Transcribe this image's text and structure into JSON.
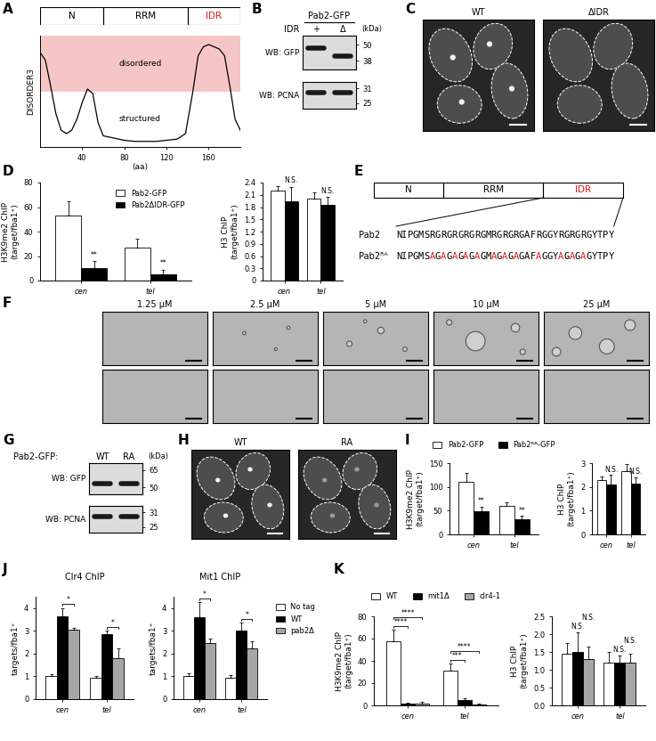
{
  "panel_letters": [
    "A",
    "B",
    "C",
    "D",
    "E",
    "F",
    "G",
    "H",
    "I",
    "J",
    "K"
  ],
  "chart_data": [
    {
      "type": "line",
      "y_label": "DISORDER3",
      "x_label": "(aa)",
      "domains": [
        {
          "name": "N",
          "start": 0,
          "end": 60
        },
        {
          "name": "RRM",
          "start": 60,
          "end": 140
        },
        {
          "name": "IDR",
          "start": 140,
          "end": 190,
          "color": "#e41a1c"
        }
      ],
      "regions": [
        {
          "label": "disordered",
          "range": [
            0.5,
            1.0
          ],
          "color": "#f6c6c6"
        },
        {
          "label": "structured",
          "range": [
            0,
            0.5
          ]
        }
      ],
      "x": [
        0,
        5,
        10,
        15,
        20,
        25,
        30,
        35,
        40,
        45,
        50,
        55,
        60,
        70,
        80,
        90,
        100,
        110,
        120,
        130,
        138,
        145,
        150,
        155,
        160,
        165,
        170,
        175,
        180,
        185,
        190
      ],
      "values": [
        0.85,
        0.78,
        0.55,
        0.3,
        0.15,
        0.12,
        0.15,
        0.25,
        0.4,
        0.52,
        0.48,
        0.22,
        0.1,
        0.08,
        0.06,
        0.05,
        0.05,
        0.05,
        0.06,
        0.07,
        0.12,
        0.5,
        0.82,
        0.9,
        0.92,
        0.9,
        0.88,
        0.82,
        0.55,
        0.25,
        0.15
      ],
      "color": "#000000",
      "xlim": [
        0,
        190
      ],
      "xticks": [
        40,
        80,
        120,
        160
      ],
      "ylim": [
        0,
        1
      ],
      "tick_labels": "x"
    },
    {
      "type": "bar",
      "y_label": "H3K9me2 ChIP\n(target/fba1⁺)",
      "categories": [
        "cen",
        "tel"
      ],
      "series": [
        {
          "name": "Pab2-GFP",
          "color": "#ffffff",
          "values": [
            53,
            27
          ],
          "errors": [
            12,
            7
          ]
        },
        {
          "name": "Pab2ΔIDR-GFP",
          "color": "#000000",
          "values": [
            10,
            5
          ],
          "errors": [
            6,
            4
          ]
        }
      ],
      "ylim": [
        0,
        80
      ],
      "yticks": [
        0,
        20,
        40,
        60,
        80
      ],
      "legend": "upper right",
      "marks": [
        {
          "category": "cen",
          "series": 1,
          "label": "**"
        },
        {
          "category": "tel",
          "series": 1,
          "label": "**"
        }
      ]
    },
    {
      "type": "bar",
      "y_label": "H3 ChIP\n(target/fba1⁺)",
      "categories": [
        "cen",
        "tel"
      ],
      "series": [
        {
          "color": "#ffffff",
          "values": [
            2.2,
            2.0
          ],
          "errors": [
            0.12,
            0.15
          ]
        },
        {
          "color": "#000000",
          "values": [
            1.95,
            1.85
          ],
          "errors": [
            0.35,
            0.2
          ]
        }
      ],
      "ylim": [
        0,
        2.4
      ],
      "yticks": [
        0,
        0.3,
        0.6,
        0.9,
        1.2,
        1.5,
        1.8,
        2.1,
        2.4
      ],
      "marks": [
        {
          "category": "cen",
          "series": 1,
          "label": "N.S."
        },
        {
          "category": "tel",
          "series": 1,
          "label": "N.S."
        }
      ]
    },
    {
      "type": "bar",
      "y_label": "H3K9me2 ChIP\n(target/fba1⁺)",
      "categories": [
        "cen",
        "tel"
      ],
      "series": [
        {
          "name": "Pab2-GFP",
          "color": "#ffffff",
          "values": [
            110,
            60
          ],
          "errors": [
            20,
            8
          ]
        },
        {
          "name": "Pab2ᴿᴬ-GFP",
          "color": "#000000",
          "values": [
            48,
            32
          ],
          "errors": [
            10,
            7
          ]
        }
      ],
      "ylim": [
        0,
        150
      ],
      "yticks": [
        0,
        50,
        100,
        150
      ],
      "legend": "top",
      "marks": [
        {
          "category": "cen",
          "series": 1,
          "label": "**"
        },
        {
          "category": "tel",
          "series": 1,
          "label": "**"
        }
      ]
    },
    {
      "type": "bar",
      "y_label": "H3 ChIP\n(target/fba1⁺)",
      "categories": [
        "cen",
        "tel"
      ],
      "series": [
        {
          "color": "#ffffff",
          "values": [
            2.3,
            2.65
          ],
          "errors": [
            0.15,
            0.3
          ]
        },
        {
          "color": "#000000",
          "values": [
            2.1,
            2.15
          ],
          "errors": [
            0.4,
            0.25
          ]
        }
      ],
      "ylim": [
        0,
        3
      ],
      "yticks": [
        0,
        1,
        2,
        3
      ],
      "marks": [
        {
          "category": "cen",
          "series": 1,
          "label": "N.S."
        },
        {
          "category": "tel",
          "series": 1,
          "label": "N.S."
        }
      ]
    },
    {
      "type": "bar",
      "title": "Clr4 ChIP",
      "y_label": "targets/fba1⁺",
      "categories": [
        "cen",
        "tel"
      ],
      "series": [
        {
          "color": "#ffffff",
          "values": [
            1.0,
            0.95
          ],
          "errors": [
            0.1,
            0.08
          ]
        },
        {
          "color": "#000000",
          "values": [
            3.65,
            2.85
          ],
          "errors": [
            0.35,
            0.15
          ]
        },
        {
          "color": "#a6a6a6",
          "values": [
            3.05,
            1.8
          ],
          "errors": [
            0.1,
            0.45
          ]
        }
      ],
      "ylim": [
        0,
        4.5
      ],
      "yticks": [
        0,
        1,
        2,
        3,
        4
      ],
      "brackets": [
        {
          "category": "cen",
          "from": 1,
          "to": 2,
          "label": "*"
        },
        {
          "category": "tel",
          "from": 1,
          "to": 2,
          "label": "*"
        }
      ]
    },
    {
      "type": "bar",
      "title": "Mit1 ChIP",
      "y_label": "targets/fba1⁺",
      "categories": [
        "cen",
        "tel"
      ],
      "series": [
        {
          "name": "No tag",
          "color": "#ffffff",
          "values": [
            1.0,
            0.95
          ],
          "errors": [
            0.12,
            0.1
          ]
        },
        {
          "name": "WT",
          "color": "#000000",
          "values": [
            3.6,
            3.0
          ],
          "errors": [
            0.65,
            0.35
          ]
        },
        {
          "name": "pab2Δ",
          "color": "#a6a6a6",
          "values": [
            2.45,
            2.25
          ],
          "errors": [
            0.2,
            0.3
          ]
        }
      ],
      "ylim": [
        0,
        4.5
      ],
      "yticks": [
        0,
        1,
        2,
        3,
        4
      ],
      "legend": "right",
      "brackets": [
        {
          "category": "cen",
          "from": 1,
          "to": 2,
          "label": "*"
        },
        {
          "category": "tel",
          "from": 1,
          "to": 2,
          "label": "*"
        }
      ]
    },
    {
      "type": "bar",
      "y_label": "H3K9me2 ChIP\n(target/fba1⁺)",
      "categories": [
        "cen",
        "tel"
      ],
      "series": [
        {
          "name": "WT",
          "color": "#ffffff",
          "values": [
            58,
            31
          ],
          "errors": [
            10,
            7
          ]
        },
        {
          "name": "mit1Δ",
          "color": "#000000",
          "values": [
            2,
            4.5
          ],
          "errors": [
            0.5,
            2
          ]
        },
        {
          "name": "clr4-1",
          "color": "#a6a6a6",
          "values": [
            2,
            1
          ],
          "errors": [
            1,
            0.5
          ]
        }
      ],
      "ylim": [
        0,
        80
      ],
      "yticks": [
        0,
        20,
        40,
        60,
        80
      ],
      "legend": "top",
      "brackets": [
        {
          "category": "cen",
          "from": 0,
          "to": 1,
          "label": "****"
        },
        {
          "category": "cen",
          "from": 0,
          "to": 2,
          "label": "****"
        },
        {
          "category": "tel",
          "from": 0,
          "to": 1,
          "label": "***"
        },
        {
          "category": "tel",
          "from": 0,
          "to": 2,
          "label": "****"
        }
      ]
    },
    {
      "type": "bar",
      "y_label": "H3 ChIP\n(target/fba1⁺)",
      "categories": [
        "cen",
        "tel"
      ],
      "series": [
        {
          "color": "#ffffff",
          "values": [
            1.45,
            1.2
          ],
          "errors": [
            0.3,
            0.3
          ]
        },
        {
          "color": "#000000",
          "values": [
            1.5,
            1.2
          ],
          "errors": [
            0.55,
            0.2
          ]
        },
        {
          "color": "#a6a6a6",
          "values": [
            1.3,
            1.2
          ],
          "errors": [
            0.35,
            0.25
          ]
        }
      ],
      "ylim": [
        0,
        2.5
      ],
      "yticks": [
        {
          "value": 0,
          "label": "0.0"
        },
        0.5,
        {
          "value": 1,
          "label": "1.0"
        },
        1.5,
        {
          "value": 2,
          "label": "2.0"
        },
        2.5
      ],
      "marks": [
        {
          "category": "cen",
          "series": 1,
          "label": "N.S."
        },
        {
          "category": "cen",
          "series": 2,
          "label": "N.S."
        },
        {
          "category": "tel",
          "series": 1,
          "label": "N.S."
        },
        {
          "category": "tel",
          "series": 2,
          "label": "N.S."
        }
      ]
    }
  ],
  "idr_blot": {
    "header": "Pab2-GFP",
    "row_label": "IDR",
    "lanes": [
      "+",
      "Δ"
    ],
    "unit": "(kDa)",
    "blots": [
      {
        "label": "WB: GFP",
        "log": "y",
        "ylim": [
          33,
          58
        ],
        "yticks": [
          50,
          38
        ],
        "bands": [
          47,
          41
        ]
      },
      {
        "label": "WB: PCNA",
        "log": "y",
        "ylim": [
          23,
          34
        ],
        "yticks": [
          31,
          25
        ],
        "bands": [
          29,
          29
        ]
      }
    ]
  },
  "idr_images": {
    "labels": [
      "WT",
      "ΔIDR"
    ]
  },
  "sequence_panel": {
    "domains": [
      "N",
      "RRM",
      "IDR"
    ],
    "highlight": "IDR",
    "color": "#e41a1c",
    "sequences": [
      {
        "name": "Pab2",
        "seq": "NIPGMSRGRGRGRGRGMRGRGRGAFRGGYRGRGRGYTPY"
      },
      {
        "name": "Pab2ᴿᴬ",
        "seq": "NIPGMSAGAGAGAGAGMAGAGAGAFAGGYAGAGAGYTPY"
      }
    ]
  },
  "droplets": {
    "concentrations": [
      "1.25 μM",
      "2.5 μM",
      "5 μM",
      "10 μM",
      "25 μM"
    ]
  },
  "ra_blot": {
    "header": "Pab2-GFP:",
    "lanes": [
      "WT",
      "RA"
    ],
    "unit": "(kDa)",
    "blots": [
      {
        "label": "WB: GFP",
        "log": "y",
        "ylim": [
          45,
          72
        ],
        "yticks": [
          65,
          50
        ],
        "bands": [
          53,
          53
        ]
      },
      {
        "label": "WB: PCNA",
        "log": "y",
        "ylim": [
          23,
          34
        ],
        "yticks": [
          31,
          25
        ],
        "bands": [
          29,
          29
        ]
      }
    ]
  },
  "ra_images": {
    "labels": [
      "WT",
      "RA"
    ]
  }
}
